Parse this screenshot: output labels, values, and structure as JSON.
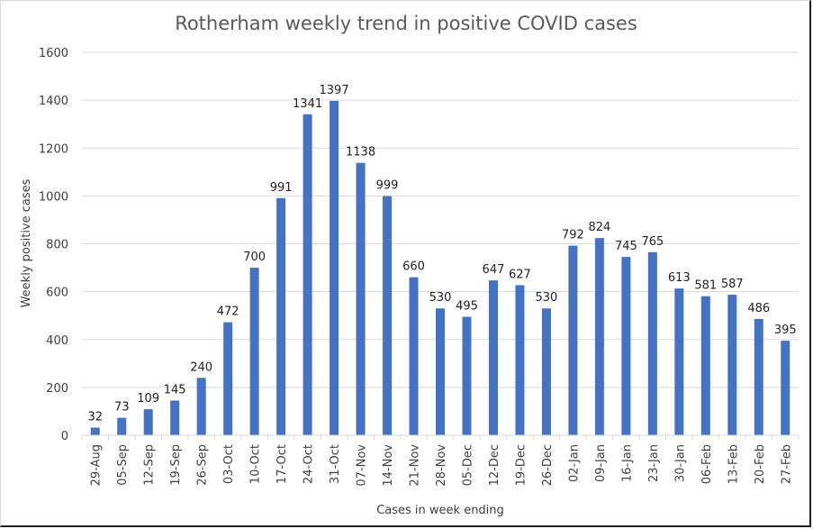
{
  "chart_data": {
    "type": "bar",
    "title": "Rotherham weekly trend in positive COVID cases",
    "xlabel": "Cases in week ending",
    "ylabel": "Weekly positive cases",
    "ylim": [
      0,
      1600
    ],
    "yticks": [
      0,
      200,
      400,
      600,
      800,
      1000,
      1200,
      1400,
      1600
    ],
    "grid": true,
    "legend": "none",
    "bar_color": "#4472C4",
    "categories": [
      "29-Aug",
      "05-Sep",
      "12-Sep",
      "19-Sep",
      "26-Sep",
      "03-Oct",
      "10-Oct",
      "17-Oct",
      "24-Oct",
      "31-Oct",
      "07-Nov",
      "14-Nov",
      "21-Nov",
      "28-Nov",
      "05-Dec",
      "12-Dec",
      "19-Dec",
      "26-Dec",
      "02-Jan",
      "09-Jan",
      "16-Jan",
      "23-Jan",
      "30-Jan",
      "06-Feb",
      "13-Feb",
      "20-Feb",
      "27-Feb"
    ],
    "values": [
      32,
      73,
      109,
      145,
      240,
      472,
      700,
      991,
      1341,
      1397,
      1138,
      999,
      660,
      530,
      495,
      647,
      627,
      530,
      792,
      824,
      745,
      765,
      613,
      581,
      587,
      486,
      395
    ]
  }
}
